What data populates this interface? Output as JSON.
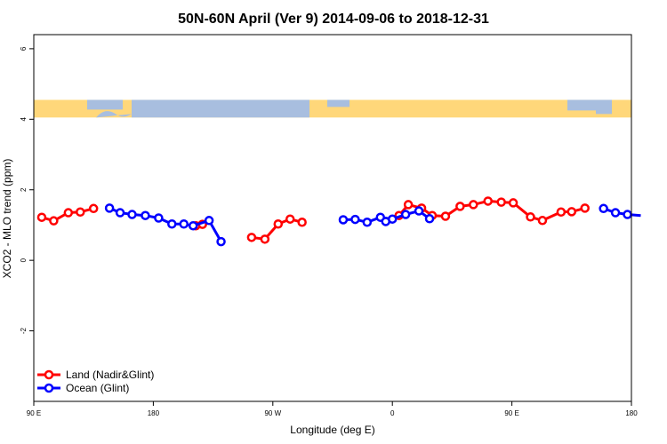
{
  "chart_data": {
    "type": "line",
    "title": "50N-60N April (Ver 9)   2014-09-06 to 2018-12-31",
    "xlabel": "Longitude (deg E)",
    "ylabel": "XCO2 - MLO trend (ppm)",
    "xlim": [
      90,
      540
    ],
    "ylim": [
      -4,
      6.4
    ],
    "x_ticks": [
      {
        "value": 90,
        "label": "90 E"
      },
      {
        "value": 180,
        "label": "180"
      },
      {
        "value": 270,
        "label": "90 W"
      },
      {
        "value": 360,
        "label": "0"
      },
      {
        "value": 450,
        "label": "90 E"
      },
      {
        "value": 540,
        "label": "180"
      }
    ],
    "y_ticks": [
      {
        "value": -2,
        "label": "-2"
      },
      {
        "value": 0,
        "label": "0"
      },
      {
        "value": 2,
        "label": "2"
      },
      {
        "value": 4,
        "label": "4"
      },
      {
        "value": 6,
        "label": "6"
      }
    ],
    "map_band": {
      "y_from": 4.05,
      "y_to": 4.55,
      "land_color": "#FFD77A",
      "ocean_color": "#A8BEDF"
    },
    "legend_position": "bottom-left",
    "series": [
      {
        "name": "Land (Nadir&Glint)",
        "color": "#FF0000",
        "segments": [
          [
            [
              96,
              1.22
            ],
            [
              105,
              1.12
            ],
            [
              116,
              1.35
            ],
            [
              125,
              1.37
            ],
            [
              135,
              1.47
            ]
          ],
          [
            [
              212,
              0.98
            ],
            [
              217,
              1.02
            ]
          ],
          [
            [
              254,
              0.65
            ],
            [
              264,
              0.6
            ],
            [
              274,
              1.03
            ],
            [
              283,
              1.17
            ],
            [
              292,
              1.08
            ]
          ],
          [
            [
              365,
              1.27
            ],
            [
              372,
              1.58
            ],
            [
              382,
              1.48
            ],
            [
              390,
              1.27
            ],
            [
              400,
              1.25
            ],
            [
              411,
              1.53
            ],
            [
              421,
              1.58
            ],
            [
              432,
              1.68
            ],
            [
              442,
              1.65
            ],
            [
              451,
              1.63
            ],
            [
              464,
              1.23
            ],
            [
              473,
              1.13
            ],
            [
              487,
              1.37
            ],
            [
              495,
              1.38
            ],
            [
              505,
              1.48
            ]
          ]
        ]
      },
      {
        "name": "Ocean (Glint)",
        "color": "#0000FF",
        "segments": [
          [
            [
              147,
              1.48
            ],
            [
              155,
              1.35
            ],
            [
              164,
              1.3
            ],
            [
              174,
              1.27
            ],
            [
              184,
              1.2
            ],
            [
              194,
              1.03
            ],
            [
              203,
              1.03
            ],
            [
              210,
              0.98
            ],
            [
              222,
              1.13
            ],
            [
              231,
              0.53
            ]
          ],
          [
            [
              323,
              1.15
            ],
            [
              332,
              1.16
            ],
            [
              341,
              1.08
            ],
            [
              351,
              1.22
            ],
            [
              360,
              1.17
            ],
            [
              370,
              1.3
            ],
            [
              380,
              1.4
            ],
            [
              388,
              1.18
            ]
          ],
          [
            [
              355,
              1.1
            ]
          ],
          [
            [
              519,
              1.47
            ],
            [
              528,
              1.35
            ],
            [
              537,
              1.3
            ],
            [
              547,
              1.27
            ]
          ]
        ]
      }
    ]
  }
}
